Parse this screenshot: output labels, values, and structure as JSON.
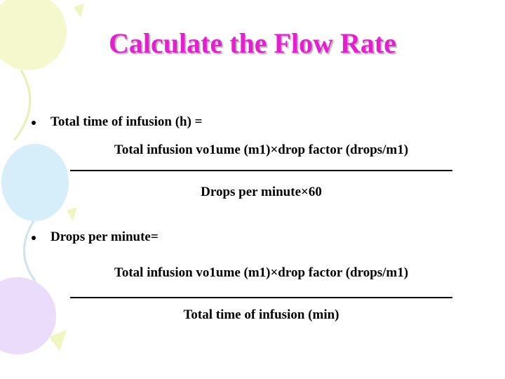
{
  "slide": {
    "title": "Calculate the Flow Rate",
    "formulas": [
      {
        "label": "Total time of infusion (h) =",
        "numerator": "Total infusion vo1ume (m1)×drop factor (drops/m1)",
        "denominator": "Drops per minute×60"
      },
      {
        "label": "Drops per minute=",
        "numerator": "Total infusion vo1ume (m1)×drop factor (drops/m1)",
        "denominator": "Total time of infusion (min)"
      }
    ]
  }
}
